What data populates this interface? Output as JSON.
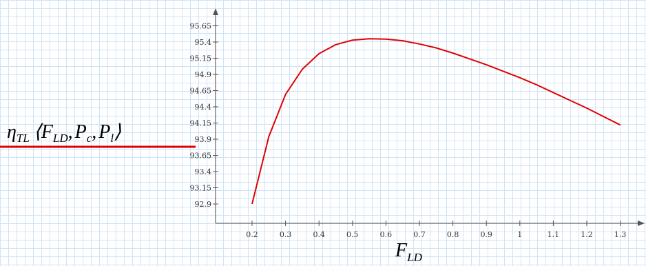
{
  "chart_data": {
    "type": "line",
    "series": [
      {
        "name": "η_TL(F_LD, P_c, P_l)",
        "color": "#e00000",
        "x": [
          0.2,
          0.25,
          0.3,
          0.35,
          0.4,
          0.45,
          0.5,
          0.55,
          0.6,
          0.65,
          0.7,
          0.75,
          0.8,
          0.85,
          0.9,
          0.95,
          1.0,
          1.05,
          1.1,
          1.15,
          1.2,
          1.25,
          1.3
        ],
        "y": [
          92.9,
          93.94,
          94.59,
          94.98,
          95.22,
          95.36,
          95.43,
          95.45,
          95.445,
          95.42,
          95.37,
          95.31,
          95.23,
          95.14,
          95.05,
          94.95,
          94.85,
          94.74,
          94.62,
          94.5,
          94.38,
          94.25,
          94.12
        ]
      }
    ],
    "legend": {
      "eta": "η",
      "eta_sub": "TL",
      "open_paren": "⟨",
      "close_paren": "⟩",
      "comma": ",",
      "f": "F",
      "f_sub": "LD",
      "pc": "P",
      "pc_sub": "c",
      "pl": "P",
      "pl_sub": "l"
    },
    "xlabel_main": "F",
    "xlabel_sub": "LD",
    "ylabel": "",
    "x_ticks": [
      0.2,
      0.3,
      0.4,
      0.5,
      0.6,
      0.7,
      0.8,
      0.9,
      1,
      1.1,
      1.2,
      1.3
    ],
    "y_ticks": [
      92.9,
      93.15,
      93.4,
      93.65,
      93.9,
      94.15,
      94.4,
      94.65,
      94.9,
      95.15,
      95.4,
      95.65
    ],
    "xlim": [
      0.0,
      1.35
    ],
    "grid": true,
    "legend_placement": "left"
  }
}
